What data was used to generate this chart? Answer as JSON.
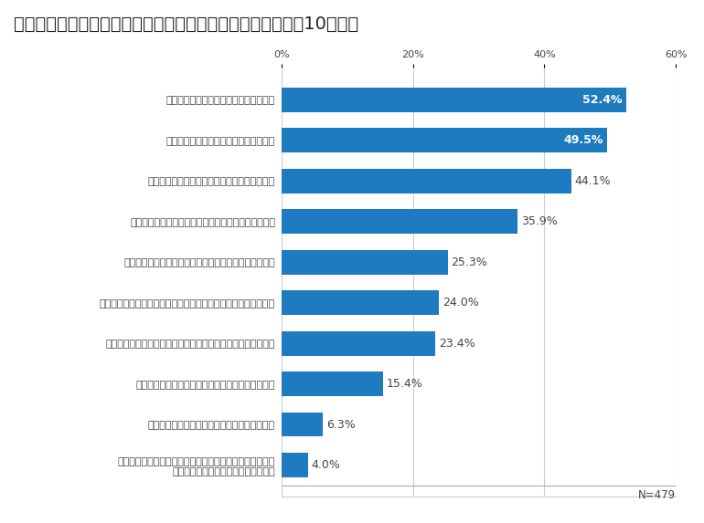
{
  "title": "企業トップのリーダーシップコミュニケーション能力を問う10の設問",
  "categories": [
    "トップと広報が情報交換する機会がある",
    "広報戦略は、経営戦略とリンクしている",
    "トップは定期的にメディアの取材を受けている",
    "トップと従業員が直接会う機会を定期的に設けている",
    "トップがメディアと懇談する機会を定期的に設けている",
    "危機管理委員会等が定期的に開催され、広報部門が参画している",
    "トップのメッセージを専門的に作成する社内・外の体制がある",
    "グループ会社等で、自社の広報戦略を共有している",
    "現在のトップは広報部門を経験したことがある",
    "トップのプレゼンテーション力・表現力を強化するための\nトレーニングを定期的に実施している"
  ],
  "values": [
    52.4,
    49.5,
    44.1,
    35.9,
    25.3,
    24.0,
    23.4,
    15.4,
    6.3,
    4.0
  ],
  "bar_color": "#1e7bbf",
  "label_color": "#444444",
  "value_color_outside": "#444444",
  "value_color_inside": "#ffffff",
  "inside_threshold": 45.0,
  "xlabel": "",
  "ylabel": "",
  "xlim": [
    0,
    60
  ],
  "xtick_labels": [
    "0%",
    "20%",
    "40%",
    "60%"
  ],
  "xtick_values": [
    0,
    20,
    40,
    60
  ],
  "n_label": "N=479",
  "title_fontsize": 14,
  "bar_label_fontsize": 9,
  "category_fontsize": 8,
  "axis_label_fontsize": 8,
  "background_color": "#ffffff",
  "grid_color": "#cccccc",
  "bar_height": 0.6
}
